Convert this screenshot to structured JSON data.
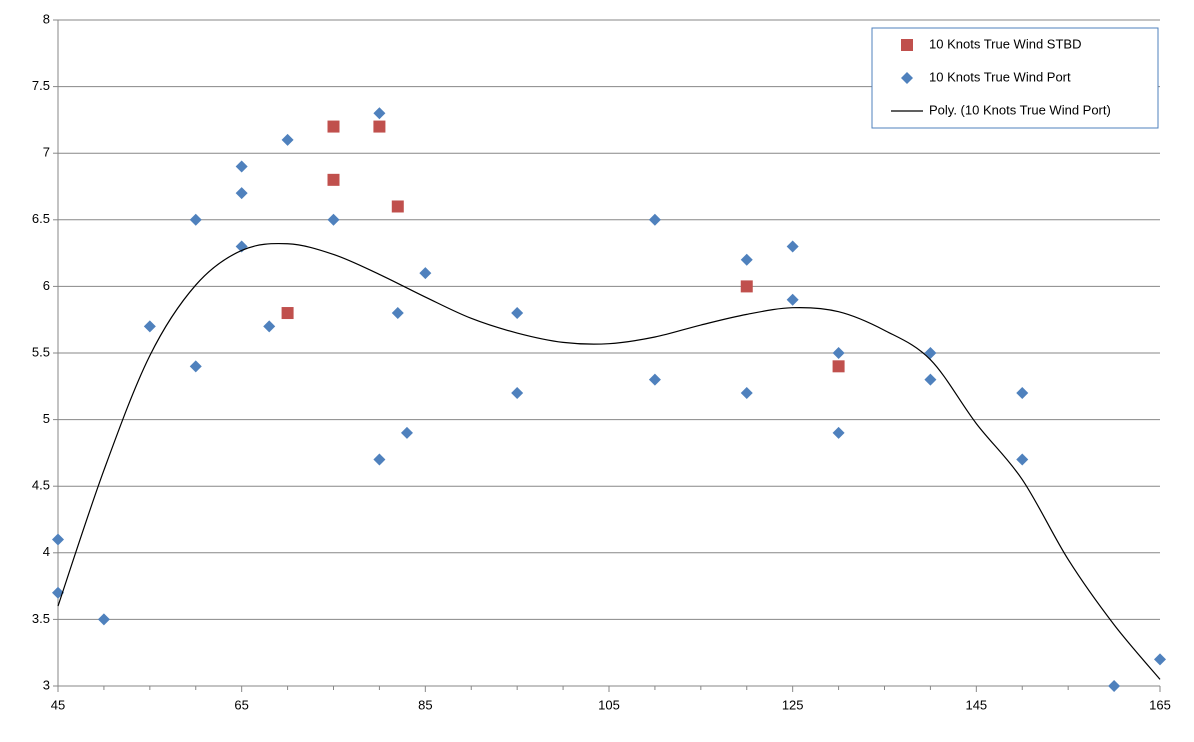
{
  "chart_data": {
    "type": "scatter",
    "xlim": [
      45,
      165
    ],
    "xticks": [
      45,
      65,
      85,
      105,
      125,
      145,
      165
    ],
    "xminorticks": [
      50,
      55,
      60,
      70,
      75,
      80,
      90,
      95,
      100,
      110,
      115,
      120,
      130,
      135,
      140,
      150,
      155,
      160
    ],
    "ylim": [
      3,
      8
    ],
    "yticks": [
      3,
      3.5,
      4,
      4.5,
      5,
      5.5,
      6,
      6.5,
      7,
      7.5,
      8
    ],
    "grid": true,
    "legend": "top-right",
    "series": [
      {
        "name": "10 Knots True Wind STBD",
        "color": "#c0504d",
        "marker": "square",
        "x": [
          70,
          75,
          75,
          80,
          82,
          120,
          130
        ],
        "values": [
          5.8,
          7.2,
          6.8,
          7.2,
          6.6,
          6.0,
          5.4
        ]
      },
      {
        "name": "10 Knots True Wind Port",
        "color": "#4f81bd",
        "marker": "diamond",
        "x": [
          45,
          45,
          50,
          55,
          60,
          60,
          65,
          65,
          65,
          68,
          70,
          75,
          80,
          80,
          82,
          83,
          85,
          95,
          95,
          110,
          110,
          120,
          120,
          125,
          125,
          130,
          130,
          140,
          140,
          150,
          150,
          160,
          165
        ],
        "values": [
          4.1,
          3.7,
          3.5,
          5.7,
          6.5,
          5.4,
          6.9,
          6.7,
          6.3,
          5.7,
          7.1,
          6.5,
          7.3,
          4.7,
          5.8,
          4.9,
          6.1,
          5.8,
          5.2,
          6.5,
          5.3,
          6.2,
          5.2,
          6.3,
          5.9,
          5.5,
          4.9,
          5.5,
          5.3,
          5.2,
          4.7,
          3.0,
          3.2
        ]
      },
      {
        "name": "Poly. (10 Knots True Wind Port)",
        "color": "#000000",
        "marker": "line",
        "x": [
          45,
          50,
          55,
          60,
          65,
          70,
          75,
          80,
          85,
          90,
          95,
          100,
          105,
          110,
          115,
          120,
          125,
          130,
          135,
          140,
          145,
          150,
          155,
          160,
          165
        ],
        "values": [
          3.6,
          4.62,
          5.48,
          6.01,
          6.27,
          6.32,
          6.24,
          6.09,
          5.92,
          5.76,
          5.65,
          5.58,
          5.57,
          5.62,
          5.71,
          5.79,
          5.84,
          5.81,
          5.67,
          5.45,
          4.97,
          4.55,
          3.95,
          3.46,
          3.05
        ]
      }
    ]
  }
}
